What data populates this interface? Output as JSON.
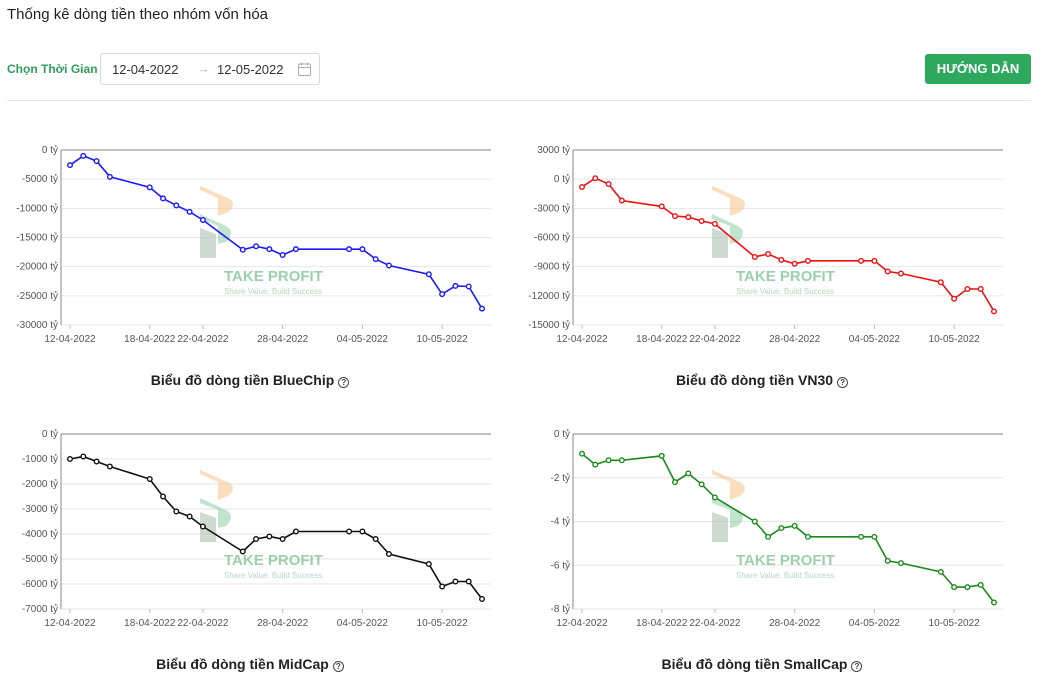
{
  "page": {
    "title": "Thống kê dòng tiền theo nhóm vốn hóa"
  },
  "filter": {
    "label": "Chọn Thời Gian :",
    "start_date": "12-04-2022",
    "arrow": "→",
    "end_date": "12-05-2022",
    "calendar_icon": "calendar-icon"
  },
  "guide_button": {
    "label": "HƯỚNG DẪN",
    "color": "#2ea85c"
  },
  "watermark": {
    "title": "TAKE PROFIT",
    "tagline": "Share Value. Build Success"
  },
  "x_tick_labels": [
    "12-04-2022",
    "18-04-2022",
    "22-04-2022",
    "28-04-2022",
    "04-05-2022",
    "10-05-2022"
  ],
  "chart_data": [
    {
      "type": "line",
      "title": "Biểu đồ dòng tiền BlueChip",
      "color": "#1a1aff",
      "unit": "tỷ",
      "ylim": [
        -30000,
        0
      ],
      "yticks": [
        0,
        -5000,
        -10000,
        -15000,
        -20000,
        -25000,
        -30000
      ],
      "series": [
        {
          "x": [
            "12-04-2022",
            "13-04-2022",
            "14-04-2022",
            "15-04-2022",
            "18-04-2022",
            "19-04-2022",
            "20-04-2022",
            "21-04-2022",
            "22-04-2022",
            "25-04-2022",
            "26-04-2022",
            "27-04-2022",
            "28-04-2022",
            "29-04-2022",
            "03-05-2022",
            "04-05-2022",
            "05-05-2022",
            "06-05-2022",
            "09-05-2022",
            "10-05-2022",
            "11-05-2022",
            "12-05-2022",
            "13-05-2022"
          ],
          "values": [
            -2600,
            -1000,
            -1900,
            -4600,
            -6400,
            -8300,
            -9500,
            -10600,
            -12000,
            -17100,
            -16500,
            -17000,
            -18000,
            -17000,
            -17000,
            -17000,
            -18700,
            -19800,
            -21300,
            -24700,
            -23300,
            -23400,
            -27200
          ]
        }
      ]
    },
    {
      "type": "line",
      "title": "Biểu đồ dòng tiền VN30",
      "color": "#ee1111",
      "unit": "tỷ",
      "ylim": [
        -15000,
        3000
      ],
      "yticks": [
        3000,
        0,
        -3000,
        -6000,
        -9000,
        -12000,
        -15000
      ],
      "series": [
        {
          "x": [
            "12-04-2022",
            "13-04-2022",
            "14-04-2022",
            "15-04-2022",
            "18-04-2022",
            "19-04-2022",
            "20-04-2022",
            "21-04-2022",
            "22-04-2022",
            "25-04-2022",
            "26-04-2022",
            "27-04-2022",
            "28-04-2022",
            "29-04-2022",
            "03-05-2022",
            "04-05-2022",
            "05-05-2022",
            "06-05-2022",
            "09-05-2022",
            "10-05-2022",
            "11-05-2022",
            "12-05-2022",
            "13-05-2022"
          ],
          "values": [
            -800,
            100,
            -500,
            -2200,
            -2800,
            -3800,
            -3900,
            -4300,
            -4600,
            -8000,
            -7700,
            -8300,
            -8700,
            -8400,
            -8400,
            -8400,
            -9500,
            -9700,
            -10600,
            -12300,
            -11300,
            -11300,
            -13600
          ]
        }
      ]
    },
    {
      "type": "line",
      "title": "Biểu đồ dòng tiền MidCap",
      "color": "#111111",
      "unit": "tỷ",
      "ylim": [
        -7000,
        0
      ],
      "yticks": [
        0,
        -1000,
        -2000,
        -3000,
        -4000,
        -5000,
        -6000,
        -7000
      ],
      "series": [
        {
          "x": [
            "12-04-2022",
            "13-04-2022",
            "14-04-2022",
            "15-04-2022",
            "18-04-2022",
            "19-04-2022",
            "20-04-2022",
            "21-04-2022",
            "22-04-2022",
            "25-04-2022",
            "26-04-2022",
            "27-04-2022",
            "28-04-2022",
            "29-04-2022",
            "03-05-2022",
            "04-05-2022",
            "05-05-2022",
            "06-05-2022",
            "09-05-2022",
            "10-05-2022",
            "11-05-2022",
            "12-05-2022",
            "13-05-2022"
          ],
          "values": [
            -1000,
            -900,
            -1100,
            -1300,
            -1800,
            -2500,
            -3100,
            -3300,
            -3700,
            -4700,
            -4200,
            -4100,
            -4200,
            -3900,
            -3900,
            -3900,
            -4200,
            -4800,
            -5200,
            -6100,
            -5900,
            -5900,
            -6600
          ]
        }
      ]
    },
    {
      "type": "line",
      "title": "Biểu đồ dòng tiền SmallCap",
      "color": "#1a8a1a",
      "unit": "tỷ",
      "ylim": [
        -8,
        0
      ],
      "yticks": [
        0,
        -2,
        -4,
        -6,
        -8
      ],
      "series": [
        {
          "x": [
            "12-04-2022",
            "13-04-2022",
            "14-04-2022",
            "15-04-2022",
            "18-04-2022",
            "19-04-2022",
            "20-04-2022",
            "21-04-2022",
            "22-04-2022",
            "25-04-2022",
            "26-04-2022",
            "27-04-2022",
            "28-04-2022",
            "29-04-2022",
            "03-05-2022",
            "04-05-2022",
            "05-05-2022",
            "06-05-2022",
            "09-05-2022",
            "10-05-2022",
            "11-05-2022",
            "12-05-2022",
            "13-05-2022"
          ],
          "values": [
            -0.9,
            -1.4,
            -1.2,
            -1.2,
            -1.0,
            -2.2,
            -1.8,
            -2.3,
            -2.9,
            -4.0,
            -4.7,
            -4.3,
            -4.2,
            -4.7,
            -4.7,
            -4.7,
            -5.8,
            -5.9,
            -6.3,
            -7.0,
            -7.0,
            -6.9,
            -7.7
          ]
        }
      ]
    }
  ]
}
